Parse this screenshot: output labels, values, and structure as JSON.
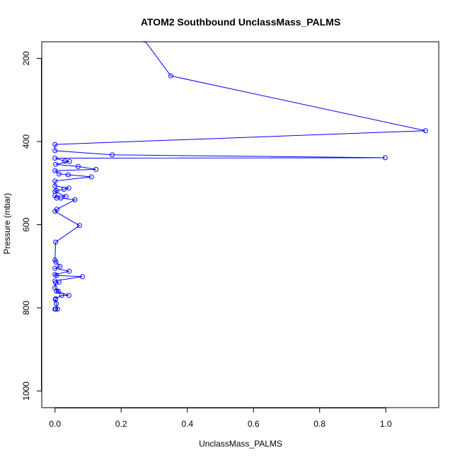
{
  "chart_data": {
    "type": "line",
    "title": "ATOM2 Southbound UnclassMass_PALMS",
    "xlabel": "UnclassMass_PALMS",
    "ylabel": "Pressure (mbar)",
    "xlim": [
      -0.04,
      1.16
    ],
    "ylim": [
      1040,
      160
    ],
    "y_reversed": true,
    "grid": false,
    "legend": "none",
    "x_ticks": [
      0.0,
      0.2,
      0.4,
      0.6,
      0.8,
      1.0
    ],
    "x_tick_labels": [
      "0.0",
      "0.2",
      "0.4",
      "0.6",
      "0.8",
      "1.0"
    ],
    "y_ticks": [
      200,
      400,
      600,
      800,
      1000
    ],
    "y_tick_labels": [
      "200",
      "400",
      "600",
      "800",
      "1000"
    ],
    "colors": {
      "series": "#0000ff",
      "axis": "#000000"
    },
    "series": [
      {
        "values": [
          {
            "x": 0.0,
            "y": 803
          },
          {
            "x": 0.002,
            "y": 803
          },
          {
            "x": 0.008,
            "y": 803
          },
          {
            "x": 0.004,
            "y": 790
          },
          {
            "x": 0.001,
            "y": 780
          },
          {
            "x": 0.002,
            "y": 778
          },
          {
            "x": 0.02,
            "y": 770
          },
          {
            "x": 0.042,
            "y": 770
          },
          {
            "x": 0.005,
            "y": 760
          },
          {
            "x": 0.01,
            "y": 760
          },
          {
            "x": 0.0,
            "y": 752
          },
          {
            "x": 0.002,
            "y": 740
          },
          {
            "x": 0.012,
            "y": 738
          },
          {
            "x": 0.0,
            "y": 735
          },
          {
            "x": 0.083,
            "y": 725
          },
          {
            "x": 0.005,
            "y": 722
          },
          {
            "x": 0.0,
            "y": 720
          },
          {
            "x": 0.043,
            "y": 712
          },
          {
            "x": 0.0,
            "y": 705
          },
          {
            "x": 0.015,
            "y": 700
          },
          {
            "x": 0.003,
            "y": 690
          },
          {
            "x": 0.0,
            "y": 685
          },
          {
            "x": 0.002,
            "y": 642
          },
          {
            "x": 0.074,
            "y": 602
          },
          {
            "x": 0.0,
            "y": 568
          },
          {
            "x": 0.006,
            "y": 563
          },
          {
            "x": 0.06,
            "y": 540
          },
          {
            "x": 0.018,
            "y": 536
          },
          {
            "x": 0.005,
            "y": 536
          },
          {
            "x": 0.0,
            "y": 530
          },
          {
            "x": 0.033,
            "y": 532
          },
          {
            "x": 0.0,
            "y": 520
          },
          {
            "x": 0.005,
            "y": 518
          },
          {
            "x": 0.027,
            "y": 515
          },
          {
            "x": 0.042,
            "y": 512
          },
          {
            "x": 0.0,
            "y": 507
          },
          {
            "x": 0.0,
            "y": 495
          },
          {
            "x": 0.11,
            "y": 485
          },
          {
            "x": 0.04,
            "y": 480
          },
          {
            "x": 0.012,
            "y": 478
          },
          {
            "x": 0.0,
            "y": 470
          },
          {
            "x": 0.124,
            "y": 467
          },
          {
            "x": 0.07,
            "y": 460
          },
          {
            "x": 0.002,
            "y": 455
          },
          {
            "x": 0.044,
            "y": 448
          },
          {
            "x": 0.03,
            "y": 447
          },
          {
            "x": 0.0,
            "y": 440
          },
          {
            "x": 0.998,
            "y": 439
          },
          {
            "x": 0.173,
            "y": 432
          },
          {
            "x": 0.0,
            "y": 422
          },
          {
            "x": 0.0,
            "y": 407
          },
          {
            "x": 1.12,
            "y": 374
          },
          {
            "x": 0.35,
            "y": 242
          },
          {
            "x": 0.27,
            "y": 156
          }
        ]
      }
    ]
  }
}
